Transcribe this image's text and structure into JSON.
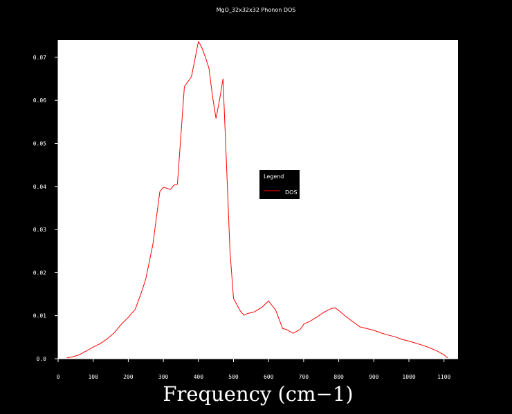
{
  "chart_data": {
    "type": "line",
    "title": "MgO_32x32x32 Phonon DOS",
    "xlabel": "Frequency (cm−1)",
    "ylabel": "",
    "xlim": [
      0,
      1140
    ],
    "ylim": [
      0.0,
      0.074
    ],
    "x_ticks": [
      0,
      100,
      200,
      300,
      400,
      500,
      600,
      700,
      800,
      900,
      1000,
      1100
    ],
    "y_ticks": [
      0.0,
      0.01,
      0.02,
      0.03,
      0.04,
      0.05,
      0.06,
      0.07
    ],
    "x_tick_labels": [
      "0",
      "100",
      "200",
      "300",
      "400",
      "500",
      "600",
      "700",
      "800",
      "900",
      "1000",
      "1100"
    ],
    "y_tick_labels": [
      "0.0",
      "0.01",
      "0.02",
      "0.03",
      "0.04",
      "0.05",
      "0.06",
      "0.07"
    ],
    "legend": {
      "title": "Legend",
      "position": "center-right"
    },
    "grid": false,
    "colors": {
      "background": "#000000",
      "plot_area": "#ffffff",
      "axis": "#ffffff",
      "series": "#ff0000",
      "legend_bg": "#000000"
    },
    "series": [
      {
        "name": "DOS",
        "x": [
          25,
          40,
          60,
          80,
          100,
          120,
          140,
          160,
          180,
          200,
          220,
          240,
          250,
          270,
          290,
          300,
          310,
          320,
          330,
          340,
          360,
          380,
          400,
          410,
          420,
          430,
          440,
          450,
          460,
          470,
          480,
          490,
          500,
          510,
          520,
          530,
          540,
          560,
          580,
          600,
          620,
          640,
          650,
          670,
          690,
          700,
          720,
          740,
          760,
          780,
          790,
          800,
          820,
          840,
          860,
          880,
          900,
          920,
          940,
          960,
          980,
          1000,
          1020,
          1040,
          1060,
          1080,
          1100,
          1110
        ],
        "y": [
          0.0002,
          0.0004,
          0.0009,
          0.0018,
          0.0027,
          0.0035,
          0.0046,
          0.006,
          0.008,
          0.0096,
          0.0115,
          0.016,
          0.0186,
          0.0265,
          0.0388,
          0.0398,
          0.0396,
          0.0393,
          0.0403,
          0.0405,
          0.0632,
          0.0655,
          0.0737,
          0.0722,
          0.07,
          0.0675,
          0.061,
          0.0558,
          0.06,
          0.065,
          0.045,
          0.025,
          0.014,
          0.0125,
          0.011,
          0.0101,
          0.0105,
          0.0109,
          0.0119,
          0.0134,
          0.0113,
          0.007,
          0.0068,
          0.0059,
          0.0068,
          0.008,
          0.0088,
          0.0098,
          0.0109,
          0.0117,
          0.0118,
          0.0112,
          0.0098,
          0.0086,
          0.0074,
          0.007,
          0.0066,
          0.006,
          0.0055,
          0.0051,
          0.0045,
          0.0041,
          0.0036,
          0.0031,
          0.0025,
          0.0018,
          0.0009,
          0.0002
        ]
      }
    ]
  }
}
